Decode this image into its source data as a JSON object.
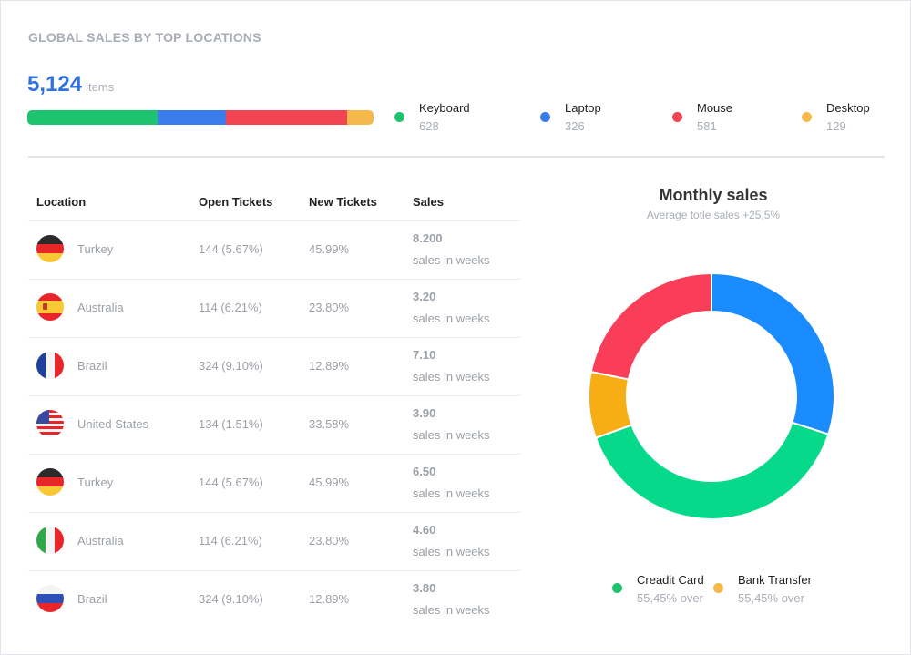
{
  "header": {
    "title": "GLOBAL SALES BY TOP LOCATIONS"
  },
  "summary": {
    "total": "5,124",
    "unit": "items"
  },
  "products": [
    {
      "name": "Keyboard",
      "value": "628",
      "color": "#1ec36f"
    },
    {
      "name": "Laptop",
      "value": "326",
      "color": "#3b7ceb"
    },
    {
      "name": "Mouse",
      "value": "581",
      "color": "#f24452"
    },
    {
      "name": "Desktop",
      "value": "129",
      "color": "#f5b84b"
    }
  ],
  "table": {
    "headers": [
      "Location",
      "Open Tickets",
      "New Tickets",
      "Sales"
    ],
    "rows": [
      {
        "flag": "germany-flag",
        "location": "Turkey",
        "open": "144 (5.67%)",
        "new": "45.99%",
        "sales": "8.200",
        "sub": "sales in weeks"
      },
      {
        "flag": "spain-flag",
        "location": "Australia",
        "open": "114 (6.21%)",
        "new": "23.80%",
        "sales": "3.20",
        "sub": "sales in weeks"
      },
      {
        "flag": "france-flag",
        "location": "Brazil",
        "open": "324 (9.10%)",
        "new": "12.89%",
        "sales": "7.10",
        "sub": "sales in weeks"
      },
      {
        "flag": "usa-flag",
        "location": "United States",
        "open": "134 (1.51%)",
        "new": "33.58%",
        "sales": "3.90",
        "sub": "sales in weeks"
      },
      {
        "flag": "germany-flag",
        "location": "Turkey",
        "open": "144 (5.67%)",
        "new": "45.99%",
        "sales": "6.50",
        "sub": "sales in weeks"
      },
      {
        "flag": "italy-flag",
        "location": "Australia",
        "open": "114 (6.21%)",
        "new": "23.80%",
        "sales": "4.60",
        "sub": "sales in weeks"
      },
      {
        "flag": "russia-flag",
        "location": "Brazil",
        "open": "324 (9.10%)",
        "new": "12.89%",
        "sales": "3.80",
        "sub": "sales in weeks"
      }
    ]
  },
  "chart": {
    "title": "Monthly sales",
    "subtitle": "Average totle sales +25,5%",
    "legend": [
      {
        "name": "Creadit Card",
        "value": "55,45% over",
        "color": "#1ec36f"
      },
      {
        "name": "Bank Transfer",
        "value": "55,45% over",
        "color": "#f5b84b"
      }
    ]
  },
  "chart_data": {
    "type": "pie",
    "title": "Monthly sales",
    "subtitle": "Average totle sales +25,5%",
    "slices": [
      {
        "value": 30.0,
        "color": "#1a8cff"
      },
      {
        "value": 39.5,
        "color": "#06d98a"
      },
      {
        "value": 8.7,
        "color": "#f7ae15"
      },
      {
        "value": 21.8,
        "color": "#fa3e5a"
      }
    ],
    "start_angle_deg": 0
  }
}
